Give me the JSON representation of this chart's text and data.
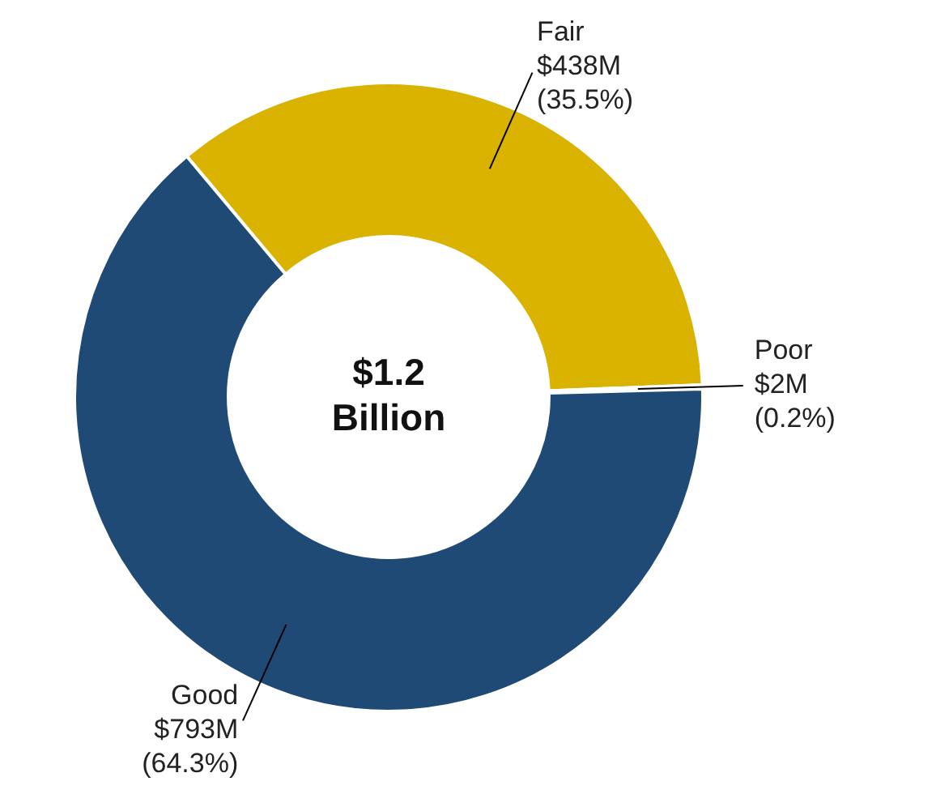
{
  "chart_data": {
    "type": "donut",
    "categories": [
      "Fair $438M",
      "Poor $2M",
      "Good $793M"
    ],
    "values": [
      35.5,
      0.2,
      64.3
    ],
    "value_labels": [
      "(35.5%)",
      "(0.2%)",
      "(64.3%)"
    ],
    "colors": [
      "#d9b300",
      "#2a4d73",
      "#1f4a75"
    ],
    "annotations": [
      "$1.2 Billion"
    ],
    "legend": false
  }
}
